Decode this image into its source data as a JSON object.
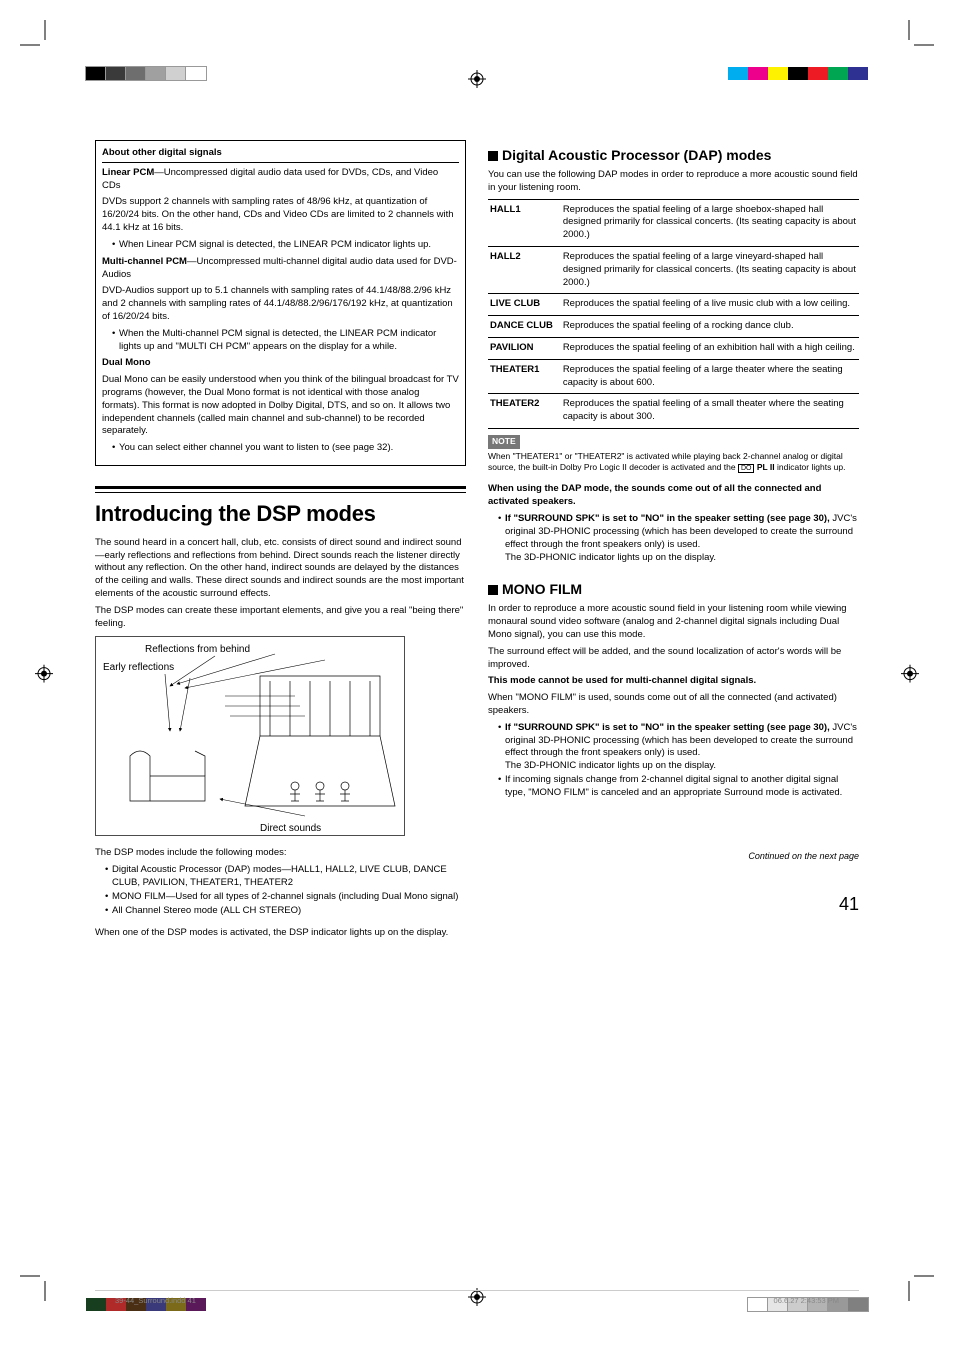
{
  "left": {
    "boxed_title": "About other digital signals",
    "linearpcm_label": "Linear PCM",
    "linearpcm_desc": "—Uncompressed digital audio data used for DVDs, CDs, and Video CDs",
    "linearpcm_p2": "DVDs support 2 channels with sampling rates of 48/96 kHz, at quantization of 16/20/24 bits. On the other hand, CDs and Video CDs are limited to 2 channels with 44.1 kHz at 16 bits.",
    "linearpcm_bullet": "When Linear PCM signal is detected, the LINEAR PCM indicator lights up.",
    "mcpcm_label": "Multi-channel PCM",
    "mcpcm_desc": "—Uncompressed multi-channel digital audio data used for DVD-Audios",
    "mcpcm_p2": "DVD-Audios support up to 5.1 channels with sampling rates of 44.1/48/88.2/96 kHz and 2 channels with sampling rates of 44.1/48/88.2/96/176/192 kHz, at quantization of 16/20/24 bits.",
    "mcpcm_bullet": "When the Multi-channel PCM signal is detected, the LINEAR PCM indicator lights up and \"MULTI CH PCM\" appears on the display for a while.",
    "dualmono_label": "Dual Mono",
    "dualmono_p1": "Dual Mono can be easily understood when you think of the bilingual broadcast for TV programs (however, the Dual Mono format is not identical with those analog formats). This format is now adopted in Dolby Digital, DTS, and so on. It allows two independent channels (called main channel and sub-channel) to be recorded separately.",
    "dualmono_bullet": "You can select either channel you want to listen to (see page 32).",
    "dsp_heading": "Introducing the DSP modes",
    "dsp_p1": "The sound heard in a concert hall, club, etc. consists of direct sound and indirect sound—early reflections and reflections from behind. Direct sounds reach the listener directly without any reflection. On the other hand, indirect sounds are delayed by the distances of the ceiling and walls. These direct sounds and indirect sounds are the most important elements of the acoustic surround effects.",
    "dsp_p2": "The DSP modes can create these important elements, and give you a real \"being there\" feeling.",
    "diagram_label_behind": "Reflections from behind",
    "diagram_label_early": "Early reflections",
    "diagram_label_direct": "Direct sounds",
    "dsp_p3": "The DSP modes include the following modes:",
    "dsp_bullets": [
      "Digital Acoustic Processor (DAP) modes—HALL1, HALL2, LIVE CLUB, DANCE CLUB, PAVILION, THEATER1, THEATER2",
      "MONO FILM—Used for all types of 2-channel signals (including Dual Mono signal)",
      "All Channel Stereo mode (ALL CH STEREO)"
    ],
    "dsp_p4": "When one of the DSP modes is activated, the DSP indicator lights up on the display."
  },
  "right": {
    "dap_title": "Digital Acoustic Processor (DAP) modes",
    "dap_intro": "You can use the following DAP modes in order to reproduce a more acoustic sound field in your listening room.",
    "table": [
      {
        "k": "HALL1",
        "v": "Reproduces the spatial feeling of a large shoebox-shaped hall designed primarily for classical concerts. (Its seating capacity is about 2000.)"
      },
      {
        "k": "HALL2",
        "v": "Reproduces the spatial feeling of a large vineyard-shaped hall designed primarily for classical concerts. (Its seating capacity is about 2000.)"
      },
      {
        "k": "LIVE CLUB",
        "v": "Reproduces the spatial feeling of a live music club with a low ceiling."
      },
      {
        "k": "DANCE CLUB",
        "v": "Reproduces the spatial feeling of a rocking dance club."
      },
      {
        "k": "PAVILION",
        "v": "Reproduces the spatial feeling of an exhibition hall with a high ceiling."
      },
      {
        "k": "THEATER1",
        "v": "Reproduces the spatial feeling of a large theater where the seating capacity is about 600."
      },
      {
        "k": "THEATER2",
        "v": "Reproduces the spatial feeling of a small theater where the seating capacity is about 300."
      }
    ],
    "note_label": "NOTE",
    "note_text": "When \"THEATER1\" or \"THEATER2\" is activated while playing back 2-channel analog or digital source, the built-in Dolby Pro Logic II decoder is activated and the  PL II  indicator lights up.",
    "dap_wh_title": "When using the DAP mode, the sounds come out of all the connected and activated speakers.",
    "dap_bullet_label": "If \"SURROUND SPK\" is set to \"NO\" in the speaker setting (see page 30),",
    "dap_bullet_rest": " JVC's original 3D-PHONIC processing (which has been developed to create the surround effect through the front speakers only) is used.",
    "dap_bullet_after": "The 3D-PHONIC indicator lights up on the display.",
    "mono_title": "MONO FILM",
    "mono_p1": "In order to reproduce a more acoustic sound field in your listening room while viewing monaural sound video software (analog and 2-channel digital signals including Dual Mono signal), you can use this mode.",
    "mono_p2": "The surround effect will be added, and the sound localization of actor's words will be improved.",
    "mono_warn": "This mode cannot be used for multi-channel digital signals.",
    "mono_p3": "When \"MONO FILM\" is used, sounds come out of all the connected (and activated) speakers.",
    "mono_bullet_label": "If \"SURROUND SPK\" is set to \"NO\" in the speaker setting (see page 30),",
    "mono_bullet_rest": " JVC's original 3D-PHONIC processing (which has been developed to create the surround effect through the front speakers only) is used.",
    "mono_bullet_after": "The 3D-PHONIC indicator lights up on the display.",
    "mono_bullet2": "If incoming signals change from 2-channel digital signal to another digital signal type, \"MONO FILM\" is canceled and an appropriate Surround mode is activated.",
    "continued": "Continued on the next page",
    "pagenum": "41"
  },
  "footer": {
    "left": "39-44_Surround.indd   41",
    "right": "06.6.27   2:43:53 PM"
  },
  "colors": {
    "bars_left": [
      "#000000",
      "#3a3a3a",
      "#6e6e6e",
      "#a0a0a0",
      "#d0d0d0",
      "#ffffff"
    ],
    "bars_right": [
      "#00adee",
      "#ec008c",
      "#fff200",
      "#000000",
      "#ed1c24",
      "#00a651",
      "#2e3192"
    ],
    "bars_br": [
      "#ffffff",
      "#e6e6e6",
      "#cccccc",
      "#b3b3b3",
      "#999999",
      "#808080"
    ],
    "bars_bl": [
      "#173f1f",
      "#b02a2a",
      "#4a2f14",
      "#3a3a7a",
      "#7a6a1a",
      "#5a1a5a"
    ]
  }
}
